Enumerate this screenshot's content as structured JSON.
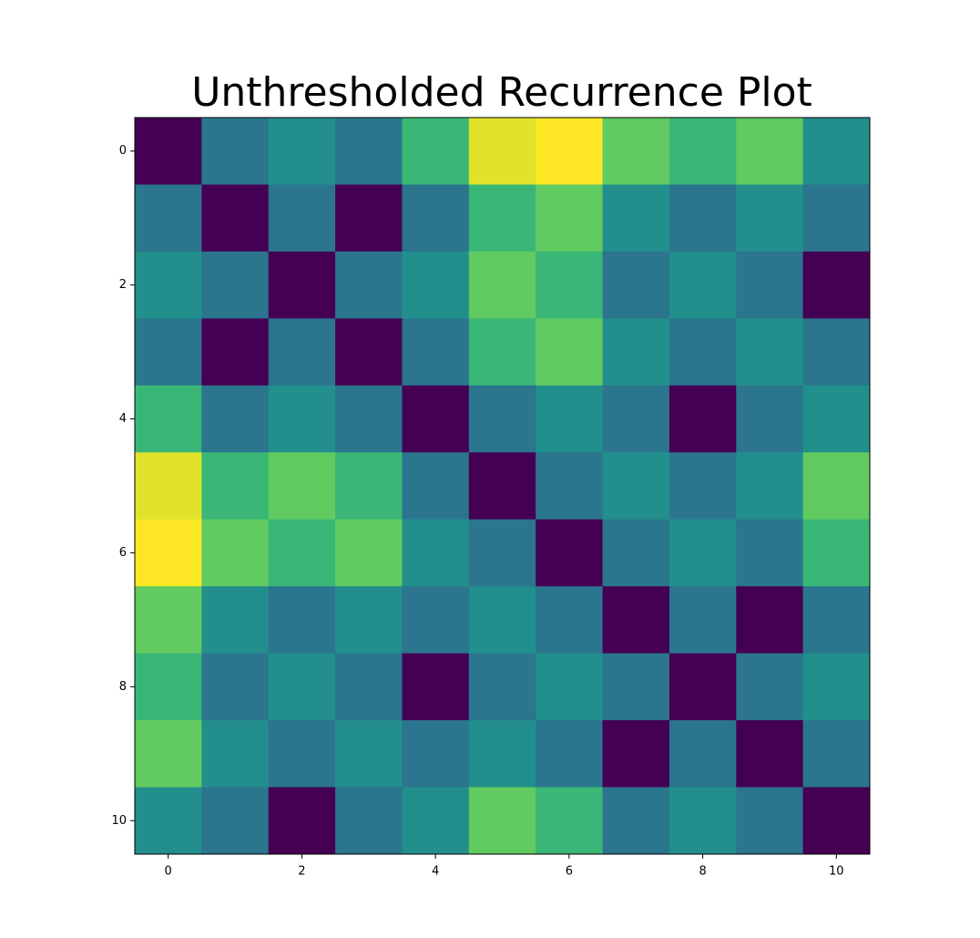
{
  "chart_data": {
    "type": "heatmap",
    "title": "Unthresholded Recurrence Plot",
    "colormap": "viridis",
    "xlim": [
      -0.5,
      10.5
    ],
    "ylim": [
      10.5,
      -0.5
    ],
    "xticks": [
      0,
      2,
      4,
      6,
      8,
      10
    ],
    "yticks": [
      0,
      2,
      4,
      6,
      8,
      10
    ],
    "z": [
      [
        0,
        0.3,
        0.42,
        0.3,
        0.62,
        0.95,
        1.0,
        0.72,
        0.62,
        0.72,
        0.42
      ],
      [
        0.3,
        0,
        0.3,
        0,
        0.3,
        0.62,
        0.72,
        0.42,
        0.3,
        0.42,
        0.3
      ],
      [
        0.42,
        0.3,
        0,
        0.3,
        0.42,
        0.72,
        0.62,
        0.3,
        0.42,
        0.3,
        0
      ],
      [
        0.3,
        0,
        0.3,
        0,
        0.3,
        0.62,
        0.72,
        0.42,
        0.3,
        0.42,
        0.3
      ],
      [
        0.62,
        0.3,
        0.42,
        0.3,
        0,
        0.3,
        0.42,
        0.3,
        0,
        0.3,
        0.42
      ],
      [
        0.95,
        0.62,
        0.72,
        0.62,
        0.3,
        0,
        0.3,
        0.42,
        0.3,
        0.42,
        0.72
      ],
      [
        1.0,
        0.72,
        0.62,
        0.72,
        0.42,
        0.3,
        0,
        0.3,
        0.42,
        0.3,
        0.62
      ],
      [
        0.72,
        0.42,
        0.3,
        0.42,
        0.3,
        0.42,
        0.3,
        0,
        0.3,
        0,
        0.3
      ],
      [
        0.62,
        0.3,
        0.42,
        0.3,
        0,
        0.3,
        0.42,
        0.3,
        0,
        0.3,
        0.42
      ],
      [
        0.72,
        0.42,
        0.3,
        0.42,
        0.3,
        0.42,
        0.3,
        0,
        0.3,
        0,
        0.3
      ],
      [
        0.42,
        0.3,
        0,
        0.3,
        0.42,
        0.72,
        0.62,
        0.3,
        0.42,
        0.3,
        0
      ]
    ]
  }
}
